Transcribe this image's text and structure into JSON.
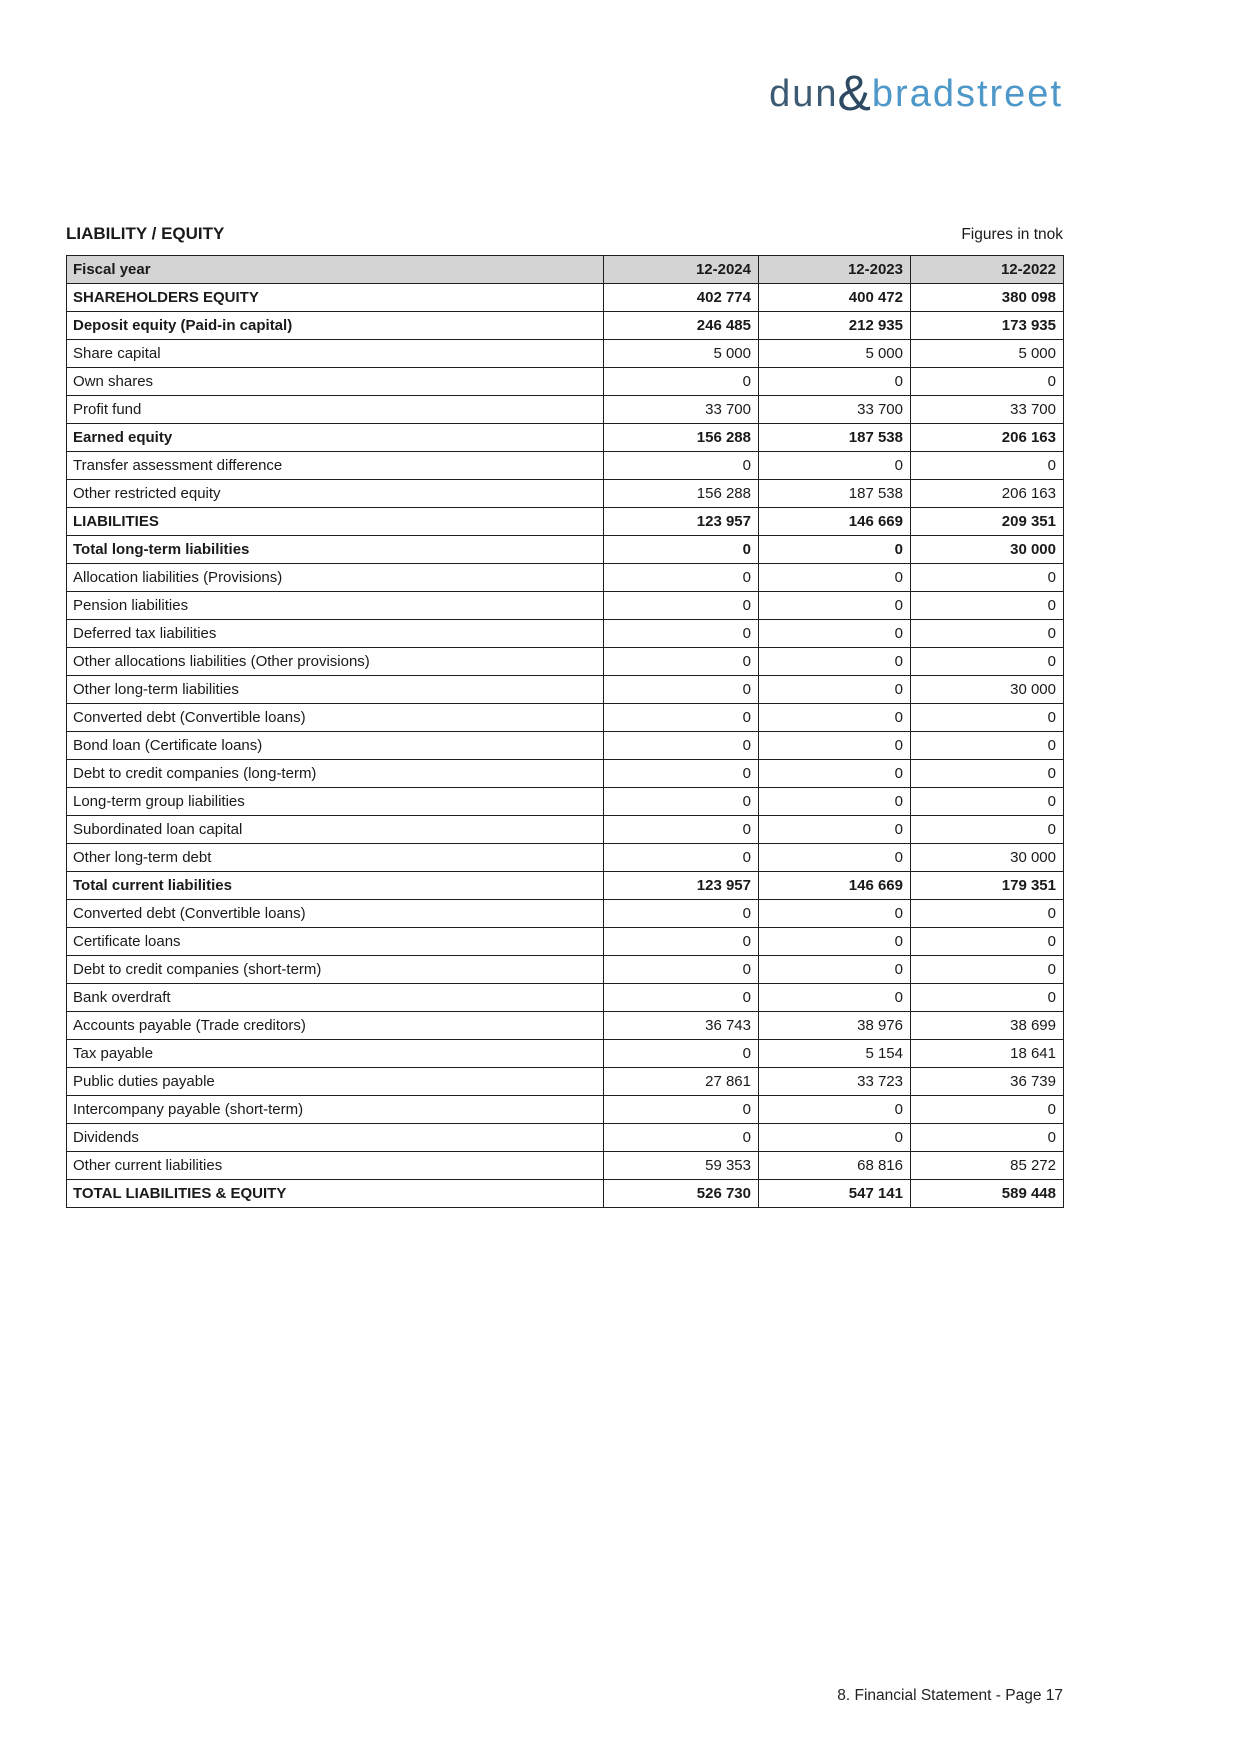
{
  "page": {
    "title": "LIABILITY / EQUITY",
    "figures_note": "Figures in tnok",
    "footer": "8. Financial Statement - Page 17"
  },
  "logo": {
    "part1": "dun",
    "amp": "&",
    "part2": "bradstreet",
    "colors": {
      "part1": "#3d5a73",
      "amp": "#2e4a63",
      "part2": "#4e97c9"
    }
  },
  "colors": {
    "header_bg": "#d4d4d4",
    "border": "#1f1f1f",
    "text": "#1a1a1a",
    "page_bg": "#ffffff"
  },
  "table": {
    "header": {
      "label": "Fiscal year",
      "columns": [
        "12-2024",
        "12-2023",
        "12-2022"
      ]
    },
    "rows": [
      {
        "label": "SHAREHOLDERS EQUITY",
        "values": [
          "402 774",
          "400 472",
          "380 098"
        ],
        "bold": true
      },
      {
        "label": "Deposit equity (Paid-in capital)",
        "values": [
          "246 485",
          "212 935",
          "173 935"
        ],
        "bold": true
      },
      {
        "label": "Share capital",
        "values": [
          "5 000",
          "5 000",
          "5 000"
        ],
        "bold": false
      },
      {
        "label": "Own shares",
        "values": [
          "0",
          "0",
          "0"
        ],
        "bold": false
      },
      {
        "label": "Profit fund",
        "values": [
          "33 700",
          "33 700",
          "33 700"
        ],
        "bold": false
      },
      {
        "label": "Earned equity",
        "values": [
          "156 288",
          "187 538",
          "206 163"
        ],
        "bold": true
      },
      {
        "label": "Transfer assessment difference",
        "values": [
          "0",
          "0",
          "0"
        ],
        "bold": false
      },
      {
        "label": "Other restricted equity",
        "values": [
          "156 288",
          "187 538",
          "206 163"
        ],
        "bold": false
      },
      {
        "label": "LIABILITIES",
        "values": [
          "123 957",
          "146 669",
          "209 351"
        ],
        "bold": true
      },
      {
        "label": "Total long-term liabilities",
        "values": [
          "0",
          "0",
          "30 000"
        ],
        "bold": true
      },
      {
        "label": "Allocation liabilities (Provisions)",
        "values": [
          "0",
          "0",
          "0"
        ],
        "bold": false
      },
      {
        "label": "Pension liabilities",
        "values": [
          "0",
          "0",
          "0"
        ],
        "bold": false
      },
      {
        "label": "Deferred tax liabilities",
        "values": [
          "0",
          "0",
          "0"
        ],
        "bold": false
      },
      {
        "label": "Other allocations liabilities (Other provisions)",
        "values": [
          "0",
          "0",
          "0"
        ],
        "bold": false
      },
      {
        "label": "Other long-term liabilities",
        "values": [
          "0",
          "0",
          "30 000"
        ],
        "bold": false
      },
      {
        "label": "Converted debt (Convertible loans)",
        "values": [
          "0",
          "0",
          "0"
        ],
        "bold": false
      },
      {
        "label": "Bond loan (Certificate loans)",
        "values": [
          "0",
          "0",
          "0"
        ],
        "bold": false
      },
      {
        "label": "Debt to credit companies (long-term)",
        "values": [
          "0",
          "0",
          "0"
        ],
        "bold": false
      },
      {
        "label": "Long-term group liabilities",
        "values": [
          "0",
          "0",
          "0"
        ],
        "bold": false
      },
      {
        "label": "Subordinated loan capital",
        "values": [
          "0",
          "0",
          "0"
        ],
        "bold": false
      },
      {
        "label": "Other long-term debt",
        "values": [
          "0",
          "0",
          "30 000"
        ],
        "bold": false
      },
      {
        "label": "Total current liabilities",
        "values": [
          "123 957",
          "146 669",
          "179 351"
        ],
        "bold": true
      },
      {
        "label": "Converted debt (Convertible loans)",
        "values": [
          "0",
          "0",
          "0"
        ],
        "bold": false
      },
      {
        "label": "Certificate loans",
        "values": [
          "0",
          "0",
          "0"
        ],
        "bold": false
      },
      {
        "label": "Debt to credit companies (short-term)",
        "values": [
          "0",
          "0",
          "0"
        ],
        "bold": false
      },
      {
        "label": "Bank overdraft",
        "values": [
          "0",
          "0",
          "0"
        ],
        "bold": false
      },
      {
        "label": "Accounts payable (Trade creditors)",
        "values": [
          "36 743",
          "38 976",
          "38 699"
        ],
        "bold": false
      },
      {
        "label": "Tax payable",
        "values": [
          "0",
          "5 154",
          "18 641"
        ],
        "bold": false
      },
      {
        "label": "Public duties payable",
        "values": [
          "27 861",
          "33 723",
          "36 739"
        ],
        "bold": false
      },
      {
        "label": "Intercompany payable (short-term)",
        "values": [
          "0",
          "0",
          "0"
        ],
        "bold": false
      },
      {
        "label": "Dividends",
        "values": [
          "0",
          "0",
          "0"
        ],
        "bold": false
      },
      {
        "label": "Other current liabilities",
        "values": [
          "59 353",
          "68 816",
          "85 272"
        ],
        "bold": false
      },
      {
        "label": "TOTAL LIABILITIES & EQUITY",
        "values": [
          "526 730",
          "547 141",
          "589 448"
        ],
        "bold": true
      }
    ]
  }
}
